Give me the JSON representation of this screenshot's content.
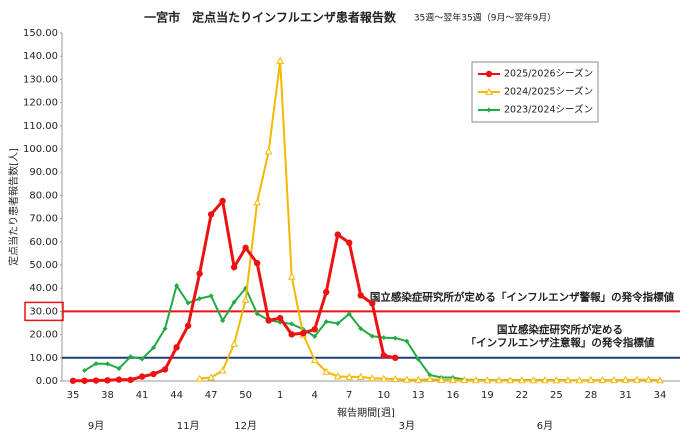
{
  "chart_data": {
    "type": "line",
    "title": "一宮市　定点当たりインフルエンザ患者報告数",
    "subtitle": "35週～翌年35週（9月～翌年9月）",
    "x_label": "報告期間[週]",
    "y_label": "定点当たり患者報告数[人]",
    "categories": [
      "35",
      null,
      null,
      "38",
      null,
      null,
      "41",
      null,
      null,
      "44",
      null,
      null,
      "47",
      null,
      null,
      "50",
      null,
      null,
      "1",
      null,
      null,
      "4",
      null,
      null,
      "7",
      null,
      null,
      "10",
      null,
      null,
      "13",
      null,
      null,
      "16",
      null,
      null,
      "19",
      null,
      null,
      "22",
      null,
      null,
      "25",
      null,
      null,
      "28",
      null,
      null,
      "31",
      null,
      null,
      "34"
    ],
    "months": [
      null,
      null,
      "9月",
      null,
      null,
      null,
      null,
      null,
      null,
      null,
      "11月",
      null,
      null,
      null,
      null,
      "12月",
      null,
      null,
      null,
      null,
      null,
      null,
      null,
      null,
      null,
      null,
      null,
      null,
      null,
      "3月",
      null,
      null,
      null,
      null,
      null,
      null,
      null,
      null,
      null,
      null,
      null,
      "6月",
      null,
      null,
      null,
      null,
      null,
      null,
      null,
      null,
      null,
      null
    ],
    "ylim": [
      0,
      150
    ],
    "yticks": [
      {
        "value": 0,
        "label": "0.00"
      },
      {
        "value": 10,
        "label": "10.00"
      },
      {
        "value": 20,
        "label": "20.00"
      },
      {
        "value": 30,
        "label": "30.00"
      },
      {
        "value": 40,
        "label": "40.00"
      },
      {
        "value": 50,
        "label": "50.00"
      },
      {
        "value": 60,
        "label": "60.00"
      },
      {
        "value": 70,
        "label": "70.00"
      },
      {
        "value": 80,
        "label": "80.00"
      },
      {
        "value": 90,
        "label": "90.00"
      },
      {
        "value": 100,
        "label": "100.00"
      },
      {
        "value": 110,
        "label": "110.00"
      },
      {
        "value": 120,
        "label": "120.00"
      },
      {
        "value": 130,
        "label": "130.00"
      },
      {
        "value": 140,
        "label": "140.00"
      },
      {
        "value": 150,
        "label": "150.00"
      }
    ],
    "series": [
      {
        "name": "2025/2026シーズン",
        "color": "#ee1111",
        "marker": "circle",
        "values": [
          0.1,
          0.1,
          0.2,
          0.3,
          0.6,
          0.5,
          1.9,
          3.0,
          5.0,
          14.5,
          23.8,
          46.3,
          71.8,
          77.6,
          49.1,
          57.4,
          50.8,
          26.1,
          27.1,
          20.1,
          20.6,
          22.3,
          38.3,
          63.1,
          59.6,
          36.9,
          33.4,
          11.0,
          10.0,
          null,
          null,
          null,
          null,
          null,
          null,
          null,
          null,
          null,
          null,
          null,
          null,
          null,
          null,
          null,
          null,
          null,
          null,
          null,
          null,
          null,
          null,
          null
        ]
      },
      {
        "name": "2024/2025シーズン",
        "color": "#f5b800",
        "marker": "triangle",
        "values": [
          null,
          null,
          null,
          null,
          null,
          null,
          null,
          null,
          null,
          null,
          null,
          1.0,
          1.5,
          4.5,
          16,
          35,
          77,
          99,
          138,
          45,
          20,
          9,
          4,
          2,
          1.8,
          1.8,
          1.2,
          1.0,
          0.8,
          0.6,
          0.5,
          0.8,
          0.5,
          0.4,
          0.4,
          0.4,
          0.3,
          0.3,
          0.3,
          0.3,
          0.3,
          0.3,
          0.3,
          0.3,
          0.3,
          0.4,
          0.4,
          0.4,
          0.5,
          0.5,
          0.6,
          0.3
        ]
      },
      {
        "name": "2023/2024シーズン",
        "color": "#22aa44",
        "marker": "diamond",
        "values": [
          null,
          4.5,
          7.5,
          7.4,
          5.4,
          10.5,
          9.5,
          14.4,
          22.6,
          41.1,
          33.6,
          35.5,
          36.7,
          26,
          34,
          40,
          29,
          26.2,
          25.3,
          24.6,
          22.3,
          19.2,
          25.6,
          24.8,
          28.9,
          22.6,
          19.3,
          18.7,
          18.5,
          17.2,
          9.4,
          2.6,
          1.5,
          1.5,
          0.6,
          0.5,
          0.4,
          0.4,
          0.4,
          0.4,
          0.4,
          0.4,
          0.4,
          0.4,
          null,
          null,
          null,
          null,
          null,
          null,
          null,
          null
        ]
      }
    ],
    "reference_lines": [
      {
        "value": 30,
        "color": "#ee1111",
        "label": [
          "国立感染症研究所が定める「インフルエンザ警報」の発令指標値"
        ]
      },
      {
        "value": 10,
        "color": "#1f3f7f",
        "label": [
          "国立感染症研究所が定める",
          "「インフルエンザ注意報」の発令指標値"
        ]
      }
    ]
  }
}
